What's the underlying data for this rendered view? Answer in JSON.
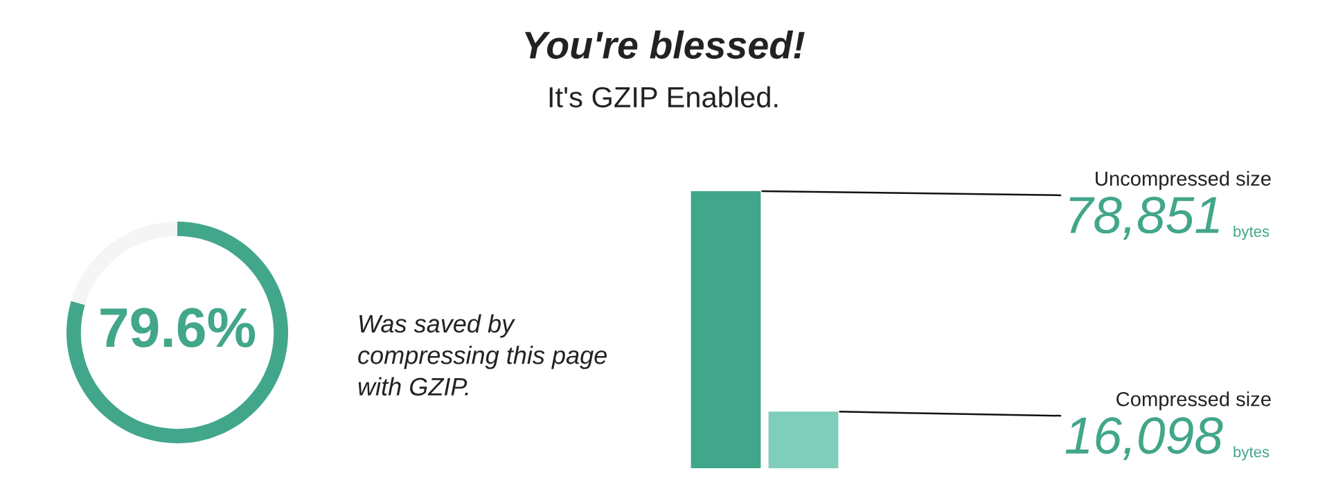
{
  "chart_data": [
    {
      "type": "donut",
      "title": "You're blessed!",
      "subtitle": "It's GZIP Enabled.",
      "categories": [
        null,
        null
      ],
      "values": [
        79.6,
        20.4
      ],
      "colors": [
        "#42a68a",
        "#f5f5f5"
      ],
      "value_labels": [
        "79.6%",
        null
      ],
      "annotations": [
        "Was saved by\ncompressing this page\nwith GZIP."
      ],
      "legend": false
    },
    {
      "type": "bar",
      "categories": [
        null,
        null
      ],
      "values": [
        78851,
        16098
      ],
      "colors": [
        "#42a68a",
        "#7fcdbb"
      ],
      "value_labels": [
        "78,851",
        "16,098"
      ],
      "annotations": [
        "Uncompressed size",
        "bytes",
        "Compressed size",
        "bytes"
      ],
      "legend": false
    }
  ]
}
